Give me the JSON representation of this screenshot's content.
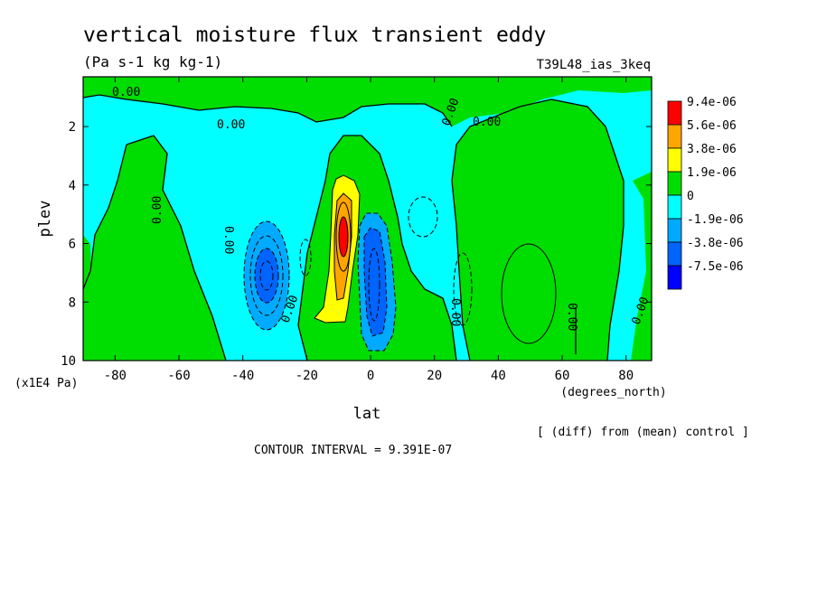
{
  "chart_data": {
    "type": "heatmap",
    "title": "vertical moisture flux transient eddy",
    "units": "(Pa s-1 kg kg-1)",
    "run_label": "T39L48_ias_3keq",
    "xlabel": "lat",
    "xunits": "(degrees_north)",
    "ylabel": "plev",
    "yunits": "(x1E4 Pa)",
    "xlim": [
      -90,
      88
    ],
    "ylim": [
      10,
      0.3
    ],
    "x_ticks": [
      -80,
      -60,
      -40,
      -20,
      0,
      20,
      40,
      60,
      80
    ],
    "x_tick_labels": [
      "-80",
      "-60",
      "-40",
      "-20",
      "0",
      "20",
      "40",
      "60",
      "80"
    ],
    "y_ticks": [
      2,
      4,
      6,
      8,
      10
    ],
    "y_tick_labels": [
      "2",
      "4",
      "6",
      "8",
      "10"
    ],
    "colorbar": {
      "levels": [
        {
          "label": "9.4e-06",
          "color": "#ff0000"
        },
        {
          "label": "5.6e-06",
          "color": "#ffa500"
        },
        {
          "label": "3.8e-06",
          "color": "#ffff00"
        },
        {
          "label": "1.9e-06",
          "color": "#00dd00"
        },
        {
          "label": "0",
          "color": "#00ffff"
        },
        {
          "label": "-1.9e-06",
          "color": "#00aaff"
        },
        {
          "label": "-3.8e-06",
          "color": "#0064ff"
        },
        {
          "label": "-7.5e-06",
          "color": "#0000ff"
        }
      ]
    },
    "contour_labels": [
      "0.00",
      "0.00",
      "0.00",
      "0.00",
      "0.00",
      "0.00",
      "0.00",
      "0.00",
      "0.00",
      "0.00"
    ],
    "contour_interval_text": "CONTOUR INTERVAL = 9.391E-07",
    "footnote": "[ (diff) from (mean) control ]",
    "regions": {
      "positive_band": {
        "color": "#00dd00",
        "value": 1e-06
      },
      "negative_band": {
        "color": "#00ffff",
        "value": -1e-06
      },
      "strong_pos": {
        "lat": -7,
        "plev": [
          4,
          8.6
        ],
        "peak": 9.4e-06
      },
      "strong_neg": {
        "lat": 3,
        "plev": [
          5,
          9.5
        ],
        "peak": -7.5e-06
      },
      "sh_neg": {
        "lat": -32,
        "plev": [
          5.5,
          9
        ],
        "peak": -5e-06
      }
    }
  }
}
